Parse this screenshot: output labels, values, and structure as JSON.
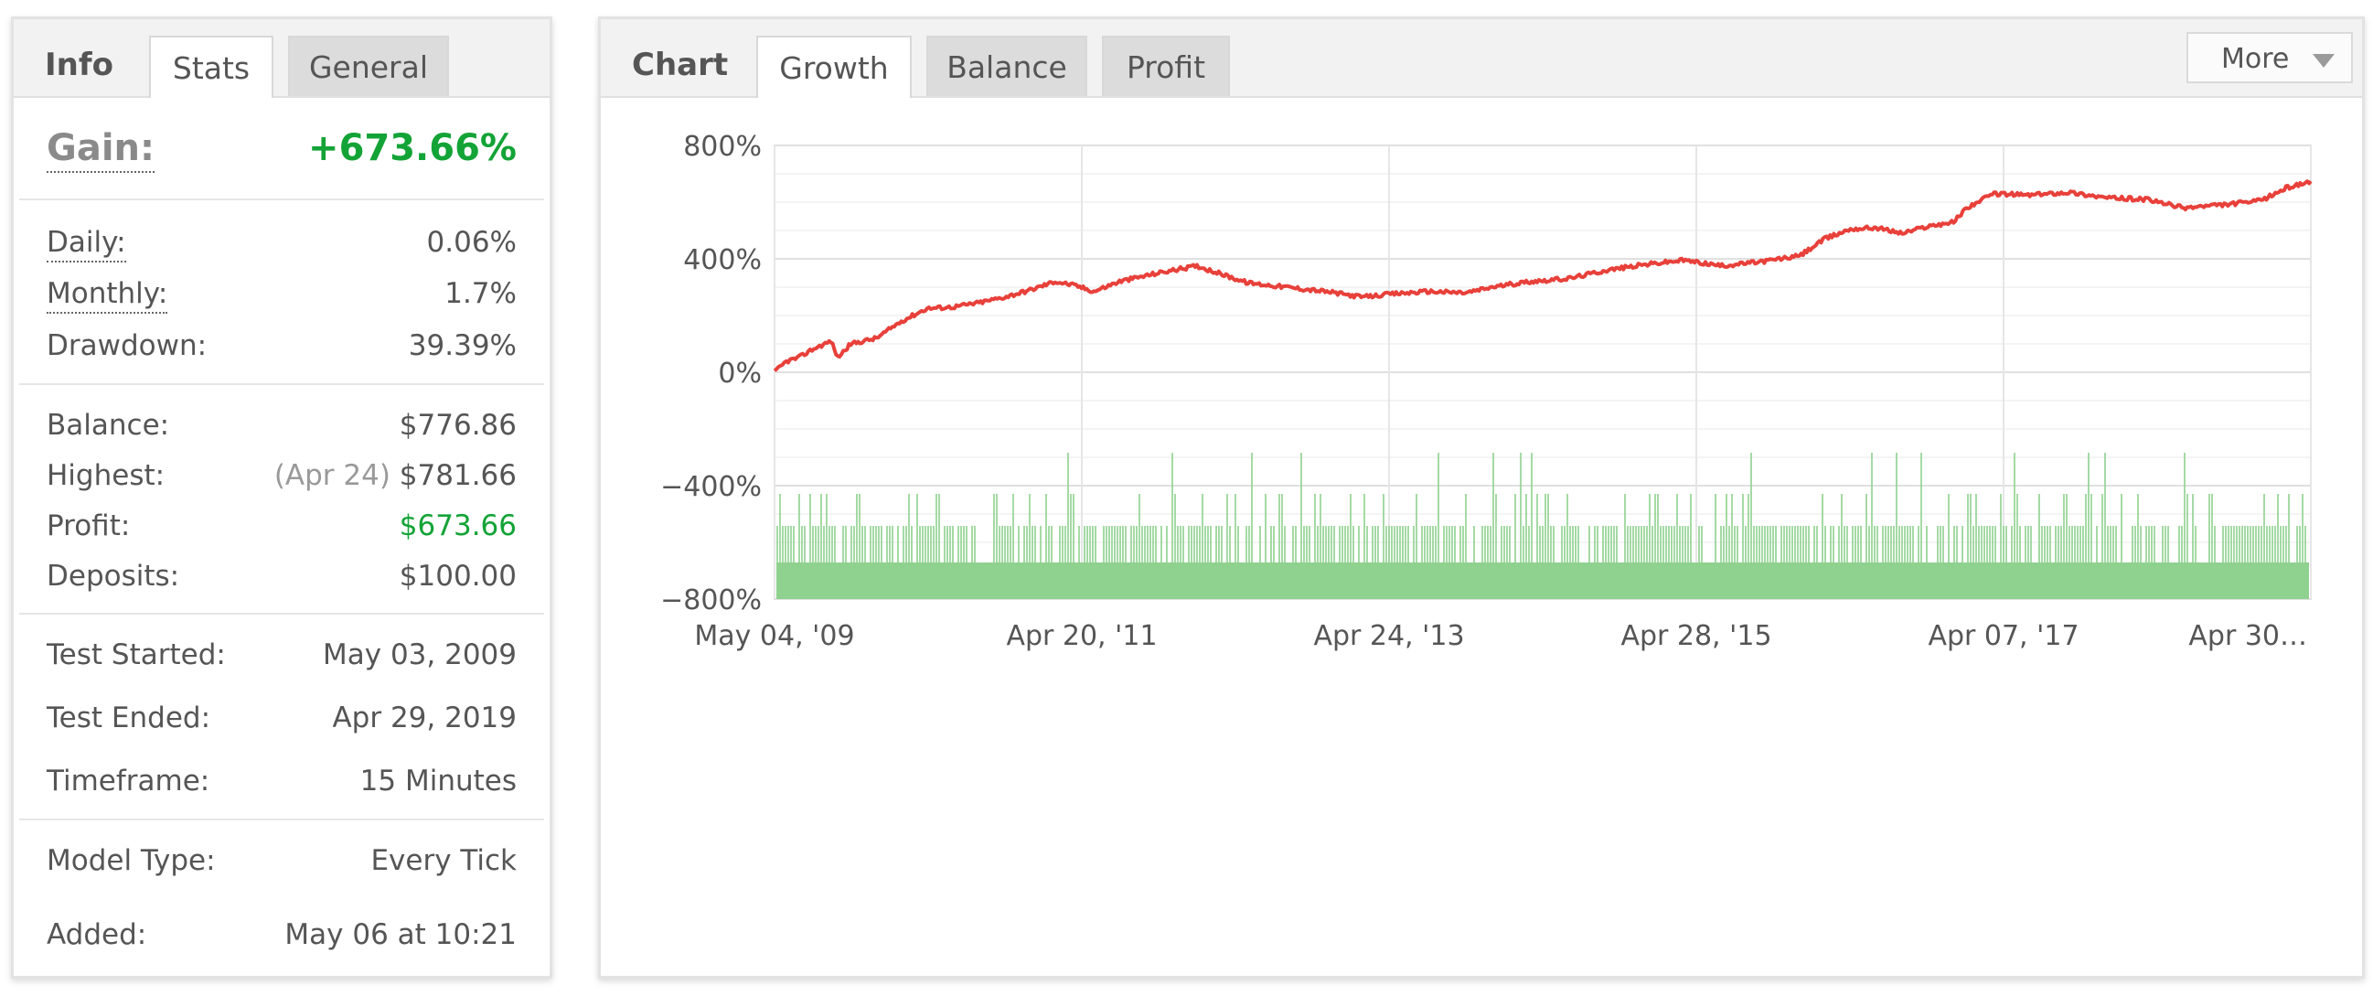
{
  "info_panel": {
    "title": "Info",
    "tabs": [
      "Stats",
      "General"
    ],
    "gain_label": "Gain:",
    "gain_value": "+673.66%",
    "daily_label": "Daily:",
    "daily_value": "0.06%",
    "monthly_label": "Monthly:",
    "monthly_value": "1.7%",
    "drawdown_label": "Drawdown:",
    "drawdown_value": "39.39%",
    "balance_label": "Balance:",
    "balance_value": "$776.86",
    "highest_label": "Highest:",
    "highest_date": "(Apr 24)",
    "highest_value": "$781.66",
    "profit_label": "Profit:",
    "profit_value": "$673.66",
    "deposits_label": "Deposits:",
    "deposits_value": "$100.00",
    "test_started_label": "Test Started:",
    "test_started_value": "May 03, 2009",
    "test_ended_label": "Test Ended:",
    "test_ended_value": "Apr 29, 2019",
    "timeframe_label": "Timeframe:",
    "timeframe_value": "15 Minutes",
    "model_type_label": "Model Type:",
    "model_type_value": "Every Tick",
    "added_label": "Added:",
    "added_value": "May 06 at 10:21"
  },
  "chart_panel": {
    "title": "Chart",
    "tabs": [
      "Growth",
      "Balance",
      "Profit"
    ],
    "more_label": "More"
  },
  "colors": {
    "growth_line": "#e8403a",
    "volume_bars": "#8fd18f",
    "positive": "#13a336"
  },
  "chart_data": {
    "type": "line",
    "title": "",
    "xlabel": "",
    "ylabel": "",
    "ylim": [
      -800,
      800
    ],
    "yticks": [
      800,
      400,
      0,
      -400,
      -800
    ],
    "ytick_labels": [
      "800%",
      "400%",
      "0%",
      "−400%",
      "−800%"
    ],
    "xtick_labels": [
      "May 04, '09",
      "Apr 20, '11",
      "Apr 24, '13",
      "Apr 28, '15",
      "Apr 07, '17",
      "Apr 30…"
    ],
    "grid": true,
    "series": [
      {
        "values": [
          {
            "x": "2009-05-04",
            "y": 0
          },
          {
            "x": "2009-06-01",
            "y": 38
          },
          {
            "x": "2009-07-01",
            "y": 52
          },
          {
            "x": "2009-08-01",
            "y": 80
          },
          {
            "x": "2009-09-15",
            "y": 110
          },
          {
            "x": "2009-10-01",
            "y": 52
          },
          {
            "x": "2009-11-01",
            "y": 100
          },
          {
            "x": "2010-01-01",
            "y": 120
          },
          {
            "x": "2010-03-01",
            "y": 180
          },
          {
            "x": "2010-05-01",
            "y": 225
          },
          {
            "x": "2010-07-01",
            "y": 230
          },
          {
            "x": "2010-09-01",
            "y": 245
          },
          {
            "x": "2010-11-01",
            "y": 265
          },
          {
            "x": "2011-01-01",
            "y": 290
          },
          {
            "x": "2011-03-01",
            "y": 320
          },
          {
            "x": "2011-04-20",
            "y": 305
          },
          {
            "x": "2011-06-01",
            "y": 285
          },
          {
            "x": "2011-08-01",
            "y": 320
          },
          {
            "x": "2011-11-01",
            "y": 350
          },
          {
            "x": "2012-02-01",
            "y": 375
          },
          {
            "x": "2012-04-01",
            "y": 345
          },
          {
            "x": "2012-06-01",
            "y": 315
          },
          {
            "x": "2012-09-01",
            "y": 300
          },
          {
            "x": "2012-12-01",
            "y": 285
          },
          {
            "x": "2013-03-01",
            "y": 265
          },
          {
            "x": "2013-05-01",
            "y": 275
          },
          {
            "x": "2013-08-01",
            "y": 285
          },
          {
            "x": "2013-11-01",
            "y": 280
          },
          {
            "x": "2014-01-01",
            "y": 300
          },
          {
            "x": "2014-04-01",
            "y": 320
          },
          {
            "x": "2014-07-01",
            "y": 330
          },
          {
            "x": "2014-10-01",
            "y": 360
          },
          {
            "x": "2015-01-01",
            "y": 380
          },
          {
            "x": "2015-04-01",
            "y": 395
          },
          {
            "x": "2015-07-01",
            "y": 375
          },
          {
            "x": "2015-10-01",
            "y": 390
          },
          {
            "x": "2016-01-01",
            "y": 410
          },
          {
            "x": "2016-03-01",
            "y": 470
          },
          {
            "x": "2016-05-01",
            "y": 505
          },
          {
            "x": "2016-07-01",
            "y": 510
          },
          {
            "x": "2016-09-01",
            "y": 490
          },
          {
            "x": "2016-11-01",
            "y": 515
          },
          {
            "x": "2017-01-01",
            "y": 530
          },
          {
            "x": "2017-02-01",
            "y": 580
          },
          {
            "x": "2017-04-07",
            "y": 630
          },
          {
            "x": "2017-07-01",
            "y": 625
          },
          {
            "x": "2017-10-01",
            "y": 635
          },
          {
            "x": "2018-01-01",
            "y": 615
          },
          {
            "x": "2018-04-01",
            "y": 610
          },
          {
            "x": "2018-07-01",
            "y": 580
          },
          {
            "x": "2018-10-01",
            "y": 590
          },
          {
            "x": "2019-01-01",
            "y": 605
          },
          {
            "x": "2019-03-01",
            "y": 650
          },
          {
            "x": "2019-04-29",
            "y": 674
          }
        ]
      }
    ],
    "volume_bars": "dense trade-activity bars along the bottom band of the chart"
  }
}
